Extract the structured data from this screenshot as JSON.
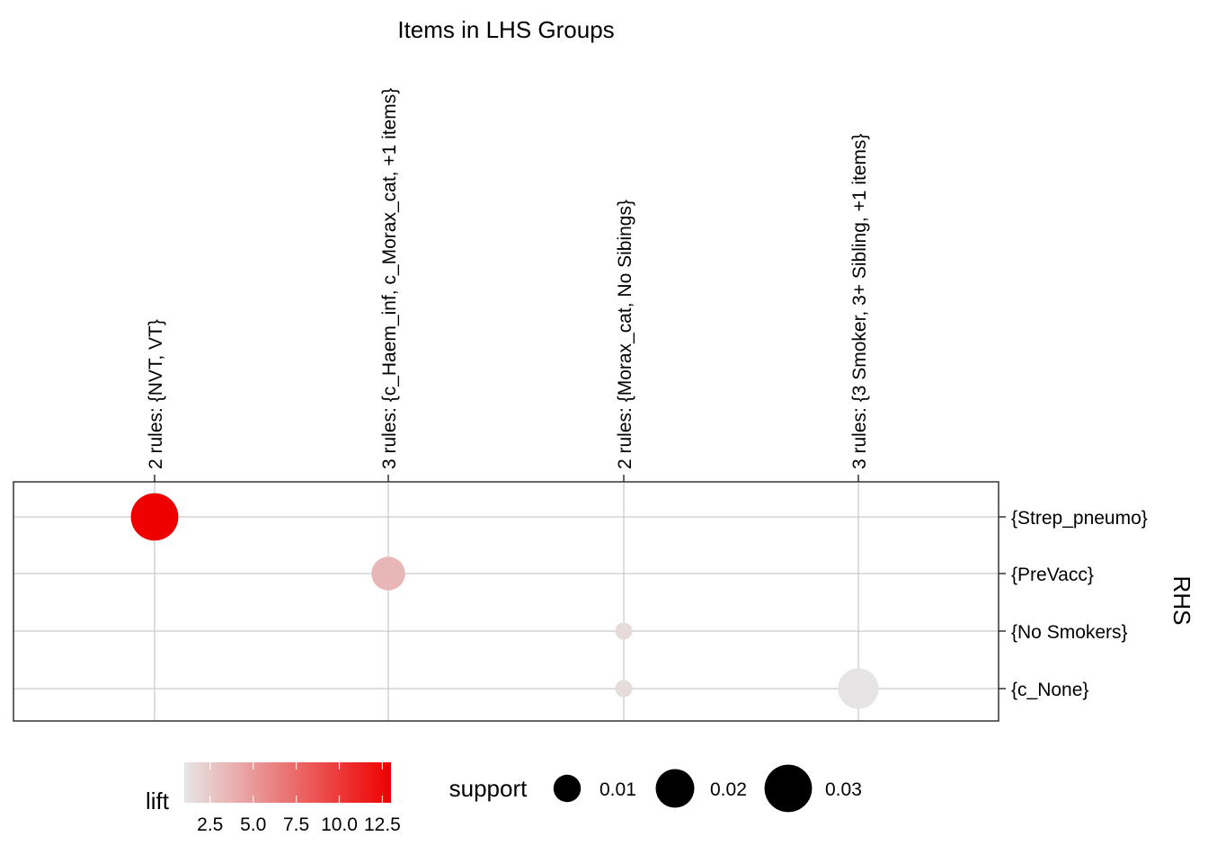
{
  "chart_data": {
    "type": "scatter",
    "title": "Items in LHS Groups",
    "xlabel": "",
    "ylabel": "RHS",
    "x_categories": [
      "2 rules: {NVT, VT}",
      "3 rules: {c_Haem_inf, c_Morax_cat, +1 items}",
      "2 rules: {Morax_cat, No Sibings}",
      "3 rules: {3 Smoker, 3+ Sibling, +1 items}"
    ],
    "y_categories": [
      "{Strep_pneumo}",
      "{PreVacc}",
      "{No Smokers}",
      "{c_None}"
    ],
    "grid": true,
    "points": [
      {
        "x": "2 rules: {NVT, VT}",
        "y": "{Strep_pneumo}",
        "support": 0.03,
        "lift": 13.0
      },
      {
        "x": "3 rules: {c_Haem_inf, c_Morax_cat, +1 items}",
        "y": "{PreVacc}",
        "support": 0.015,
        "lift": 3.5
      },
      {
        "x": "2 rules: {Morax_cat, No Sibings}",
        "y": "{No Smokers}",
        "support": 0.004,
        "lift": 1.5
      },
      {
        "x": "2 rules: {Morax_cat, No Sibings}",
        "y": "{c_None}",
        "support": 0.004,
        "lift": 1.5
      },
      {
        "x": "3 rules: {3 Smoker, 3+ Sibling, +1 items}",
        "y": "{c_None}",
        "support": 0.022,
        "lift": 1.1
      }
    ],
    "legend": {
      "placement": "bottom",
      "lift": {
        "title": "lift",
        "min": 1.0,
        "max": 13.0,
        "low_color": "#E6E6E6",
        "high_color": "#EE0000",
        "ticks": [
          2.5,
          5.0,
          7.5,
          10.0,
          12.5
        ],
        "tick_labels": [
          "2.5",
          "5.0",
          "7.5",
          "10.0",
          "12.5"
        ]
      },
      "support": {
        "title": "support",
        "values": [
          0.01,
          0.02,
          0.03
        ],
        "labels": [
          "0.01",
          "0.02",
          "0.03"
        ],
        "color": "#000000"
      }
    }
  }
}
